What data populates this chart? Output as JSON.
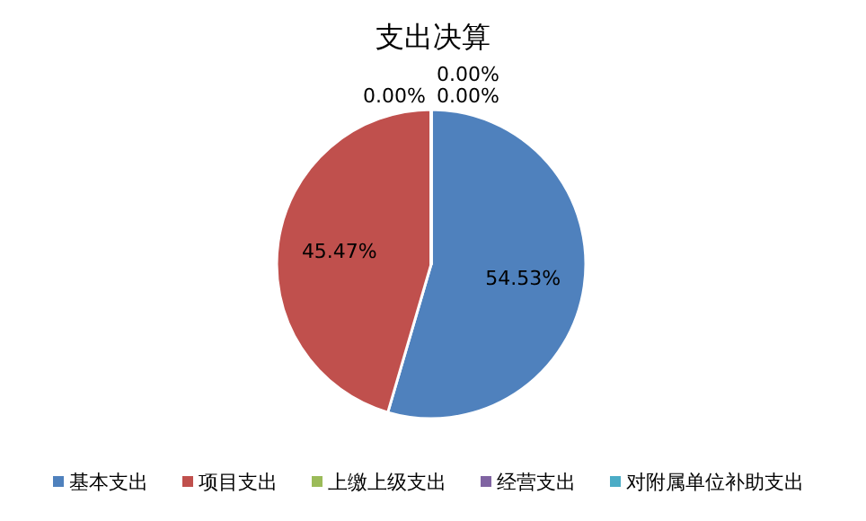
{
  "chart_data": {
    "type": "pie",
    "title": "支出决算",
    "categories": [
      "基本支出",
      "项目支出",
      "上缴上级支出",
      "经营支出",
      "对附属单位补助支出"
    ],
    "values": [
      54.53,
      45.47,
      0,
      0,
      0
    ],
    "value_labels": [
      "54.53%",
      "45.47%",
      "0.00%",
      "0.00%",
      "0.00%"
    ],
    "colors": [
      "#4f81bd",
      "#c0504d",
      "#9bbb59",
      "#8064a2",
      "#4bacc6"
    ],
    "legend": "bottom"
  }
}
